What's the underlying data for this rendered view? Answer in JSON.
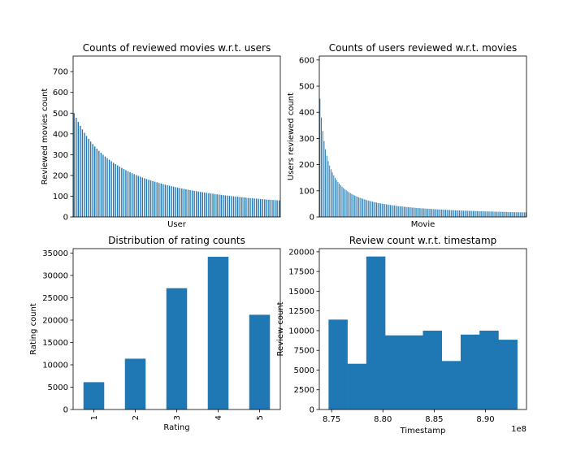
{
  "chart_data": [
    {
      "type": "bar",
      "title": "Counts of reviewed movies w.r.t. users",
      "xlabel": "User",
      "ylabel": "Reviewed movies count",
      "ylim": [
        0,
        775
      ],
      "yticks": [
        0,
        100,
        200,
        300,
        400,
        500,
        600,
        700
      ],
      "xticks_visible": false,
      "color": "#1f77b4",
      "decay": {
        "n": 100,
        "start": 500,
        "scale": 25,
        "exponent": 1.15,
        "floor": 18
      }
    },
    {
      "type": "bar",
      "title": "Counts of users reviewed w.r.t. movies",
      "xlabel": "Movie",
      "ylabel": "Users reviewed count",
      "ylim": [
        0,
        615
      ],
      "yticks": [
        0,
        100,
        200,
        300,
        400,
        500,
        600
      ],
      "xticks_visible": false,
      "color": "#1f77b4",
      "decay": {
        "n": 150,
        "start": 452,
        "scale": 5,
        "exponent": 0.95,
        "floor": 1
      }
    },
    {
      "type": "bar",
      "title": "Distribution of rating counts",
      "xlabel": "Rating",
      "ylabel": "Rating count",
      "categories": [
        "1",
        "2",
        "3",
        "4",
        "5"
      ],
      "values": [
        6110,
        11370,
        27145,
        34174,
        21201
      ],
      "ylim": [
        0,
        36000
      ],
      "yticks": [
        0,
        5000,
        10000,
        15000,
        20000,
        25000,
        30000,
        35000
      ],
      "color": "#1f77b4"
    },
    {
      "type": "bar",
      "title": "Review count w.r.t. timestamp",
      "xlabel": "Timestamp",
      "ylabel": "Review count",
      "offset_label": "1e8",
      "bin_edges": [
        8.747,
        8.7654,
        8.7838,
        8.8022,
        8.8206,
        8.839,
        8.8574,
        8.8758,
        8.8942,
        8.9126,
        8.931
      ],
      "values": [
        11400,
        5800,
        19400,
        9400,
        9400,
        10000,
        6150,
        9500,
        10000,
        8850
      ],
      "xlim": [
        8.738,
        8.94
      ],
      "xticks": [
        8.75,
        8.8,
        8.85,
        8.9
      ],
      "xtick_labels": [
        "8.75",
        "8.80",
        "8.85",
        "8.90"
      ],
      "ylim": [
        0,
        20400
      ],
      "yticks": [
        0,
        2500,
        5000,
        7500,
        10000,
        12500,
        15000,
        17500,
        20000
      ],
      "color": "#1f77b4"
    }
  ]
}
